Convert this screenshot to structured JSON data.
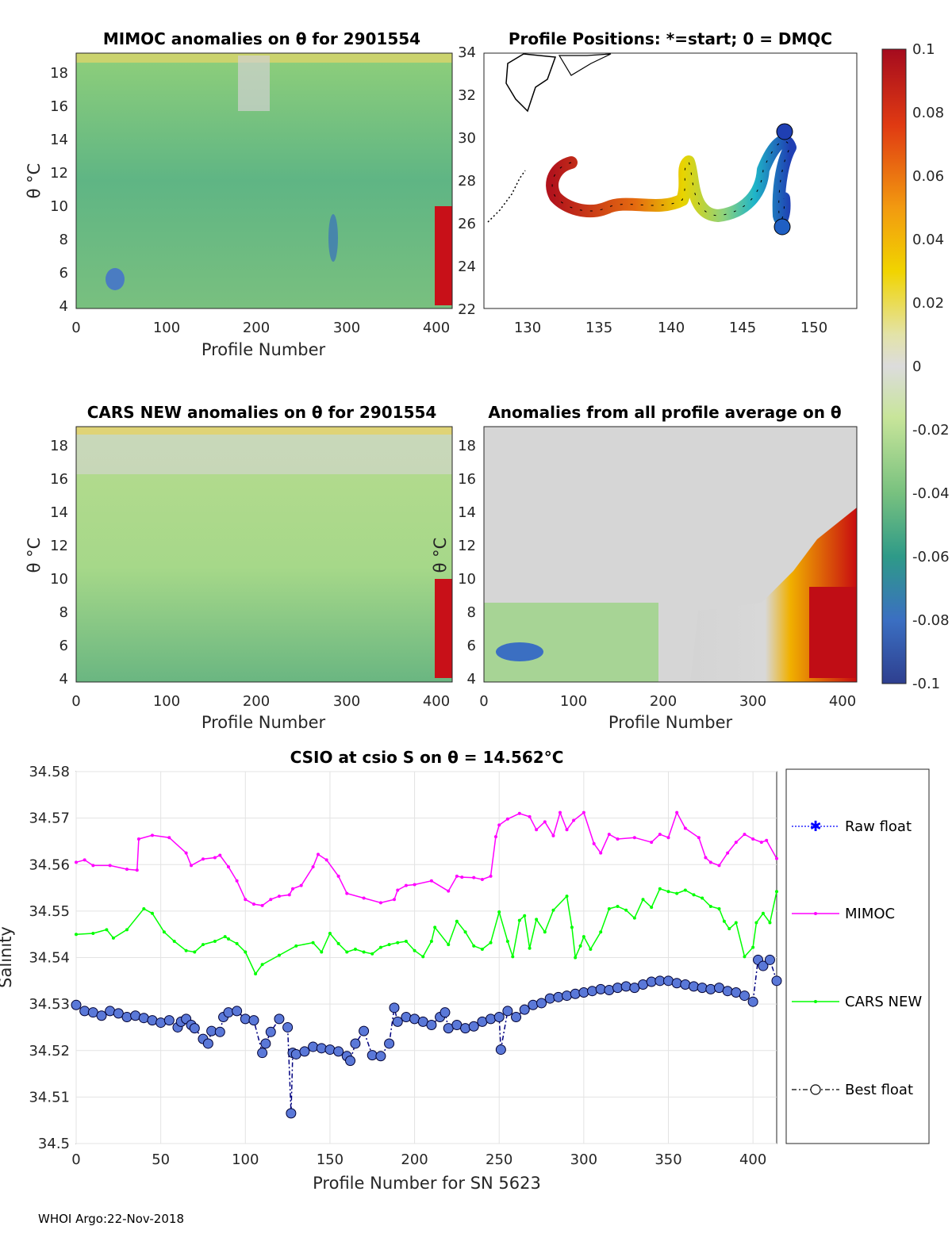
{
  "footer": "WHOI Argo:22-Nov-2018",
  "panels": {
    "mimoc": {
      "title": "MIMOC anomalies on θ  for 2901554",
      "ylabel": "θ °C",
      "xlabel": "Profile Number",
      "xticks": [
        "0",
        "100",
        "200",
        "300",
        "400"
      ],
      "yticks": [
        "4",
        "6",
        "8",
        "10",
        "12",
        "14",
        "16",
        "18"
      ]
    },
    "positions": {
      "title": "Profile Positions: *=start; 0 = DMQC",
      "xticks": [
        "130",
        "135",
        "140",
        "145",
        "150"
      ],
      "yticks": [
        "22",
        "24",
        "26",
        "28",
        "30",
        "32",
        "34"
      ]
    },
    "cars": {
      "title": "CARS NEW anomalies on θ for 2901554",
      "ylabel": "θ °C",
      "xlabel": "Profile Number",
      "xticks": [
        "0",
        "100",
        "200",
        "300",
        "400"
      ],
      "yticks": [
        "4",
        "6",
        "8",
        "10",
        "12",
        "14",
        "16",
        "18"
      ]
    },
    "allavg": {
      "title": "Anomalies from all profile average on θ",
      "ylabel": "θ °C",
      "xlabel": "Profile Number",
      "xticks": [
        "0",
        "100",
        "200",
        "300",
        "400"
      ],
      "yticks": [
        "4",
        "6",
        "8",
        "10",
        "12",
        "14",
        "16",
        "18"
      ]
    },
    "colorbar": {
      "ticks": [
        "0.1",
        "0.08",
        "0.06",
        "0.04",
        "0.02",
        "0",
        "-0.02",
        "-0.04",
        "-0.06",
        "-0.08",
        "-0.1"
      ]
    }
  },
  "chart_data": {
    "type": "line",
    "title": "CSIO at csio S on θ = 14.562°C",
    "xlabel": "Profile Number for SN 5623",
    "ylabel": "Salinity",
    "xlim": [
      0,
      414
    ],
    "ylim": [
      34.5,
      34.58
    ],
    "xticks": [
      "0",
      "50",
      "100",
      "150",
      "200",
      "250",
      "300",
      "350",
      "400"
    ],
    "yticks": [
      "34.5",
      "34.51",
      "34.52",
      "34.53",
      "34.54",
      "34.55",
      "34.56",
      "34.57",
      "34.58"
    ],
    "legend": [
      "Raw float",
      "MIMOC",
      "CARS NEW",
      "Best float"
    ],
    "colors": {
      "raw": "#0000ff",
      "mimoc": "#ff00ff",
      "cars": "#00ff00",
      "best": "#000080"
    },
    "series": [
      {
        "name": "MIMOC",
        "x": [
          0,
          5,
          10,
          20,
          30,
          36,
          37,
          45,
          55,
          65,
          68,
          75,
          82,
          85,
          90,
          95,
          100,
          105,
          110,
          115,
          120,
          126,
          128,
          133,
          140,
          143,
          148,
          155,
          160,
          170,
          180,
          188,
          190,
          195,
          200,
          210,
          220,
          225,
          228,
          235,
          240,
          245,
          248,
          250,
          255,
          262,
          268,
          272,
          277,
          282,
          286,
          290,
          294,
          300,
          306,
          310,
          315,
          320,
          330,
          340,
          345,
          350,
          355,
          360,
          368,
          372,
          375,
          380,
          385,
          390,
          395,
          400,
          405,
          408,
          414
        ],
        "values": [
          34.5605,
          34.561,
          34.5598,
          34.5598,
          34.559,
          34.5588,
          34.5655,
          34.5663,
          34.5658,
          34.5625,
          34.5598,
          34.5612,
          34.5615,
          34.562,
          34.5595,
          34.5565,
          34.5525,
          34.5515,
          34.5512,
          34.5525,
          34.5532,
          34.5535,
          34.5548,
          34.5555,
          34.5595,
          34.5622,
          34.561,
          34.5575,
          34.5538,
          34.5528,
          34.5518,
          34.5525,
          34.5545,
          34.5555,
          34.5557,
          34.5565,
          34.5543,
          34.5575,
          34.5573,
          34.5572,
          34.5568,
          34.5575,
          34.566,
          34.5685,
          34.5698,
          34.571,
          34.5703,
          34.5675,
          34.5692,
          34.5662,
          34.5712,
          34.5675,
          34.5695,
          34.5712,
          34.5645,
          34.5625,
          34.5665,
          34.5655,
          34.5658,
          34.5648,
          34.5665,
          34.5658,
          34.5712,
          34.5678,
          34.5658,
          34.5615,
          34.5605,
          34.5598,
          34.5625,
          34.5648,
          34.5665,
          34.5655,
          34.5648,
          34.5652,
          34.5613
        ]
      },
      {
        "name": "CARS NEW",
        "x": [
          0,
          10,
          18,
          22,
          30,
          40,
          45,
          52,
          58,
          65,
          70,
          75,
          82,
          88,
          90,
          95,
          100,
          106,
          110,
          120,
          130,
          140,
          145,
          150,
          155,
          160,
          165,
          170,
          175,
          180,
          185,
          190,
          195,
          200,
          205,
          210,
          212,
          220,
          225,
          230,
          235,
          240,
          245,
          250,
          255,
          258,
          262,
          265,
          268,
          272,
          277,
          282,
          290,
          293,
          295,
          298,
          300,
          304,
          310,
          315,
          320,
          325,
          330,
          335,
          340,
          345,
          350,
          355,
          360,
          365,
          370,
          375,
          380,
          383,
          386,
          390,
          395,
          400,
          402,
          406,
          410,
          414
        ],
        "values": [
          34.545,
          34.5452,
          34.546,
          34.5442,
          34.546,
          34.5505,
          34.5495,
          34.5455,
          34.5435,
          34.5415,
          34.5412,
          34.5428,
          34.5435,
          34.5445,
          34.544,
          34.543,
          34.5412,
          34.5365,
          34.5385,
          34.5405,
          34.5425,
          34.5432,
          34.5412,
          34.5452,
          34.543,
          34.5412,
          34.5418,
          34.5412,
          34.5408,
          34.5422,
          34.5428,
          34.5432,
          34.5435,
          34.5415,
          34.5402,
          34.5435,
          34.5465,
          34.5428,
          34.5478,
          34.5455,
          34.5425,
          34.5418,
          34.5432,
          34.5498,
          34.5435,
          34.5402,
          34.548,
          34.549,
          34.542,
          34.5482,
          34.5455,
          34.5502,
          34.5532,
          34.5465,
          34.54,
          34.5425,
          34.5445,
          34.5418,
          34.5455,
          34.5505,
          34.551,
          34.5502,
          34.5485,
          34.5525,
          34.5508,
          34.5548,
          34.5542,
          34.5538,
          34.5545,
          34.5535,
          34.5528,
          34.551,
          34.5505,
          34.5478,
          34.5462,
          34.5475,
          34.5402,
          34.5422,
          34.5475,
          34.5495,
          34.5475,
          34.5542
        ]
      },
      {
        "name": "Best float",
        "x": [
          0,
          5,
          10,
          15,
          20,
          25,
          30,
          35,
          40,
          45,
          50,
          55,
          60,
          62,
          65,
          68,
          70,
          75,
          78,
          80,
          85,
          87,
          90,
          95,
          100,
          105,
          110,
          112,
          115,
          120,
          125,
          127,
          128,
          130,
          135,
          140,
          145,
          150,
          155,
          160,
          162,
          165,
          170,
          175,
          180,
          185,
          188,
          190,
          195,
          200,
          205,
          210,
          215,
          218,
          220,
          225,
          230,
          235,
          240,
          245,
          250,
          251,
          255,
          260,
          265,
          270,
          275,
          280,
          285,
          290,
          295,
          300,
          305,
          310,
          315,
          320,
          325,
          330,
          335,
          340,
          345,
          350,
          355,
          360,
          365,
          370,
          375,
          380,
          385,
          390,
          395,
          400,
          403,
          406,
          410,
          414
        ],
        "values": [
          34.5298,
          34.5285,
          34.5282,
          34.5275,
          34.5285,
          34.528,
          34.5272,
          34.5275,
          34.527,
          34.5265,
          34.526,
          34.5265,
          34.525,
          34.5262,
          34.5268,
          34.5255,
          34.5248,
          34.5225,
          34.5215,
          34.5242,
          34.524,
          34.5272,
          34.5282,
          34.5285,
          34.5268,
          34.5265,
          34.5195,
          34.5215,
          34.524,
          34.5268,
          34.525,
          34.5065,
          34.5195,
          34.5192,
          34.5198,
          34.5208,
          34.5205,
          34.5202,
          34.5198,
          34.5188,
          34.5178,
          34.5215,
          34.5242,
          34.519,
          34.5188,
          34.5215,
          34.5292,
          34.5262,
          34.5272,
          34.5268,
          34.5262,
          34.5255,
          34.5272,
          34.5282,
          34.5248,
          34.5255,
          34.5248,
          34.5252,
          34.5262,
          34.5268,
          34.5272,
          34.5202,
          34.5285,
          34.5272,
          34.5288,
          34.5298,
          34.5302,
          34.5312,
          34.5315,
          34.5318,
          34.5322,
          34.5325,
          34.5328,
          34.5332,
          34.533,
          34.5335,
          34.5338,
          34.5335,
          34.5342,
          34.5348,
          34.535,
          34.535,
          34.5345,
          34.5342,
          34.5338,
          34.5335,
          34.5332,
          34.5335,
          34.5328,
          34.5325,
          34.5318,
          34.5305,
          34.5395,
          34.5382,
          34.5395,
          34.535
        ]
      }
    ]
  }
}
